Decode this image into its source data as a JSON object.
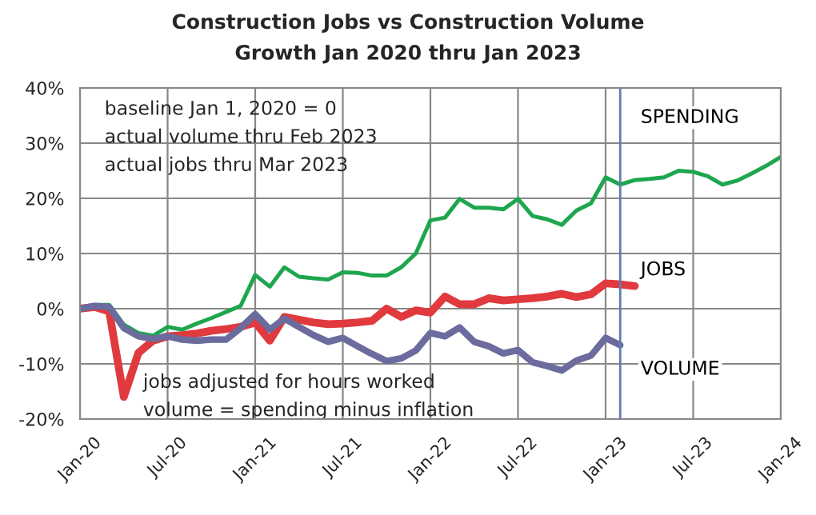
{
  "chart_data": {
    "type": "line",
    "title": "Construction Jobs vs Construction Volume",
    "subtitle": "Growth Jan 2020 thru Jan 2023",
    "x": [
      "2020-01",
      "2020-02",
      "2020-03",
      "2020-04",
      "2020-05",
      "2020-06",
      "2020-07",
      "2020-08",
      "2020-09",
      "2020-10",
      "2020-11",
      "2020-12",
      "2021-01",
      "2021-02",
      "2021-03",
      "2021-04",
      "2021-05",
      "2021-06",
      "2021-07",
      "2021-08",
      "2021-09",
      "2021-10",
      "2021-11",
      "2021-12",
      "2022-01",
      "2022-02",
      "2022-03",
      "2022-04",
      "2022-05",
      "2022-06",
      "2022-07",
      "2022-08",
      "2022-09",
      "2022-10",
      "2022-11",
      "2022-12",
      "2023-01",
      "2023-02",
      "2023-03",
      "2023-04",
      "2023-05",
      "2023-06",
      "2023-07",
      "2023-08",
      "2023-09",
      "2023-10",
      "2023-11",
      "2023-12",
      "2024-01"
    ],
    "series": [
      {
        "name": "SPENDING",
        "color": "#1ea64f",
        "values": [
          0,
          0.7,
          0.7,
          -2.9,
          -4.4,
          -4.9,
          -3.3,
          -3.8,
          -2.7,
          -1.7,
          -0.6,
          0.5,
          6.1,
          4.0,
          7.5,
          5.8,
          5.5,
          5.3,
          6.6,
          6.5,
          6.0,
          6.0,
          7.5,
          10.0,
          16.0,
          16.5,
          19.9,
          18.3,
          18.3,
          18.0,
          19.9,
          16.8,
          16.2,
          15.2,
          17.8,
          19.1,
          23.8,
          22.5,
          23.3,
          23.5,
          23.8,
          25.0,
          24.8,
          24.0,
          22.5,
          23.2,
          24.5,
          25.9,
          27.5
        ]
      },
      {
        "name": "JOBS",
        "color": "#e0393e",
        "values": [
          0,
          0.3,
          -0.5,
          -16.0,
          -8.0,
          -5.8,
          -5.0,
          -4.8,
          -4.5,
          -4.0,
          -3.7,
          -3.3,
          -2.5,
          -5.8,
          -1.5,
          -2.0,
          -2.5,
          -2.8,
          -2.7,
          -2.5,
          -2.2,
          0,
          -1.5,
          -0.3,
          -0.7,
          2.2,
          0.8,
          0.8,
          1.9,
          1.5,
          1.7,
          1.9,
          2.2,
          2.7,
          2.1,
          2.6,
          4.6,
          4.4,
          4.1,
          null,
          null,
          null,
          null,
          null,
          null,
          null,
          null,
          null,
          null
        ]
      },
      {
        "name": "VOLUME",
        "color": "#6b6b9e",
        "values": [
          0,
          0.5,
          0.3,
          -3.5,
          -5.0,
          -5.5,
          -5.0,
          -5.6,
          -5.8,
          -5.6,
          -5.6,
          -3.5,
          -1.0,
          -3.8,
          -1.8,
          -3.3,
          -4.8,
          -6.0,
          -5.3,
          -6.8,
          -8.2,
          -9.5,
          -9.0,
          -7.6,
          -4.4,
          -5.0,
          -3.4,
          -6.0,
          -6.8,
          -8.1,
          -7.5,
          -9.7,
          -10.4,
          -11.2,
          -9.4,
          -8.5,
          -5.3,
          -6.6,
          null,
          null,
          null,
          null,
          null,
          null,
          null,
          null,
          null,
          null,
          null
        ]
      }
    ],
    "xlim": [
      "2020-01",
      "2024-01"
    ],
    "xticks": [
      {
        "value": "2020-01",
        "label": "Jan-20"
      },
      {
        "value": "2020-07",
        "label": "Jul-20"
      },
      {
        "value": "2021-01",
        "label": "Jan-21"
      },
      {
        "value": "2021-07",
        "label": "Jul-21"
      },
      {
        "value": "2022-01",
        "label": "Jan-22"
      },
      {
        "value": "2022-07",
        "label": "Jul-22"
      },
      {
        "value": "2023-01",
        "label": "Jan-23"
      },
      {
        "value": "2023-07",
        "label": "Jul-23"
      },
      {
        "value": "2024-01",
        "label": "Jan-24"
      }
    ],
    "ylim": [
      -20,
      40
    ],
    "yticks": [
      {
        "value": -20,
        "label": "-20%"
      },
      {
        "value": -10,
        "label": "-10%"
      },
      {
        "value": 0,
        "label": "0%"
      },
      {
        "value": 10,
        "label": "10%"
      },
      {
        "value": 20,
        "label": "20%"
      },
      {
        "value": 30,
        "label": "30%"
      },
      {
        "value": 40,
        "label": "40%"
      }
    ],
    "ref_lines": [
      {
        "axis": "x",
        "value": "2023-02",
        "color": "#5b7fb0"
      }
    ],
    "annotations": [
      "baseline Jan 1, 2020 = 0",
      "actual volume thru Feb 2023",
      "actual jobs thru Mar 2023",
      "jobs adjusted for hours worked",
      "volume = spending minus inflation"
    ],
    "grid": true,
    "legend": false,
    "marker": "none",
    "line_style": "solid"
  }
}
